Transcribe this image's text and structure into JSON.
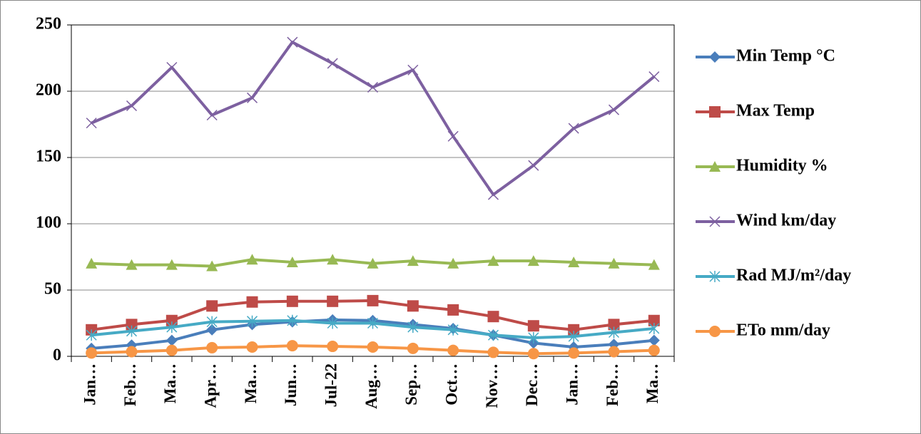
{
  "chart_data": {
    "type": "line",
    "categories": [
      "Jan…",
      "Feb…",
      "Ma…",
      "Apr…",
      "Ma…",
      "Jun…",
      "Jul-22",
      "Aug…",
      "Sep…",
      "Oct…",
      "Nov…",
      "Dec…",
      "Jan…",
      "Feb…",
      "Ma…"
    ],
    "series": [
      {
        "name": "Min Temp °C",
        "color": "#4a7ebb",
        "marker": "diamond",
        "values": [
          6,
          8.5,
          12,
          20,
          24,
          26,
          27.5,
          27,
          24,
          21,
          16,
          10,
          7,
          9,
          12
        ]
      },
      {
        "name": "Max Temp",
        "color": "#be4b48",
        "marker": "square",
        "values": [
          20,
          24,
          27,
          38,
          41,
          41.5,
          41.5,
          42,
          38,
          35,
          30,
          23,
          20,
          24,
          27
        ]
      },
      {
        "name": "Humidity %",
        "color": "#98b954",
        "marker": "triangle",
        "values": [
          70,
          69,
          69,
          68,
          73,
          71,
          73,
          70,
          72,
          70,
          72,
          72,
          71,
          70,
          69
        ]
      },
      {
        "name": "Wind km/day",
        "color": "#7d60a0",
        "marker": "x",
        "values": [
          176,
          189,
          218,
          182,
          195,
          237,
          221,
          203,
          216,
          166,
          122,
          144,
          172,
          186,
          211
        ]
      },
      {
        "name": "Rad MJ/m²/day",
        "color": "#46aac5",
        "marker": "star",
        "values": [
          16,
          19,
          22,
          26,
          26.5,
          27,
          25,
          25,
          22,
          20,
          16,
          14,
          15,
          18,
          21
        ]
      },
      {
        "name": "ETo mm/day",
        "color": "#f79646",
        "marker": "circle",
        "values": [
          2.5,
          3.5,
          4.5,
          6.5,
          7,
          8,
          7.5,
          7,
          6,
          4.5,
          3,
          2,
          2.5,
          3.5,
          4.5
        ]
      }
    ],
    "ylim": [
      0,
      250
    ],
    "yticks": [
      0,
      50,
      100,
      150,
      200,
      250
    ],
    "grid": true,
    "legend": "right"
  }
}
